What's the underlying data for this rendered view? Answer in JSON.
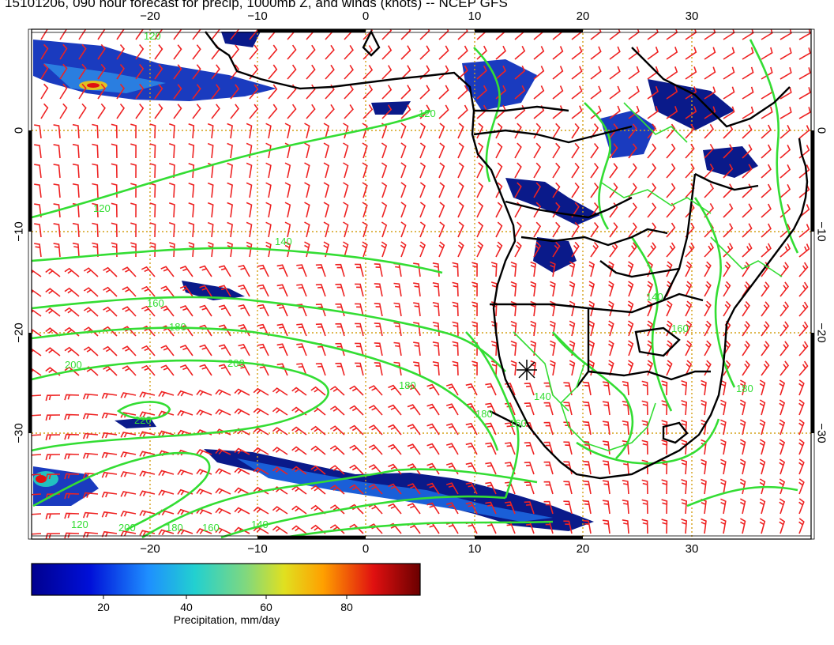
{
  "title": "15101206, 090 hour forecast for precip, 1000mb Z, and winds (knots) -- NCEP GFS",
  "axes": {
    "lon_ticks": [
      "−20",
      "−10",
      "0",
      "10",
      "20",
      "30"
    ],
    "lat_ticks": [
      "0",
      "−10",
      "−20",
      "−30"
    ]
  },
  "contour_labels": [
    "120",
    "120",
    "140",
    "160",
    "180",
    "200",
    "200",
    "220",
    "180",
    "180",
    "160",
    "140",
    "120",
    "200",
    "180",
    "160",
    "140",
    "120",
    "160",
    "180",
    "140"
  ],
  "colorbar": {
    "ticks": [
      "20",
      "40",
      "60",
      "80"
    ],
    "label": "Precipitation, mm/day"
  },
  "colors": {
    "contour": "#33dd33",
    "barb": "#ee2222",
    "coast": "#000000",
    "grid": "#d4a017",
    "precip_low": "#0a1a8a",
    "precip_mid": "#1a5fd8"
  }
}
